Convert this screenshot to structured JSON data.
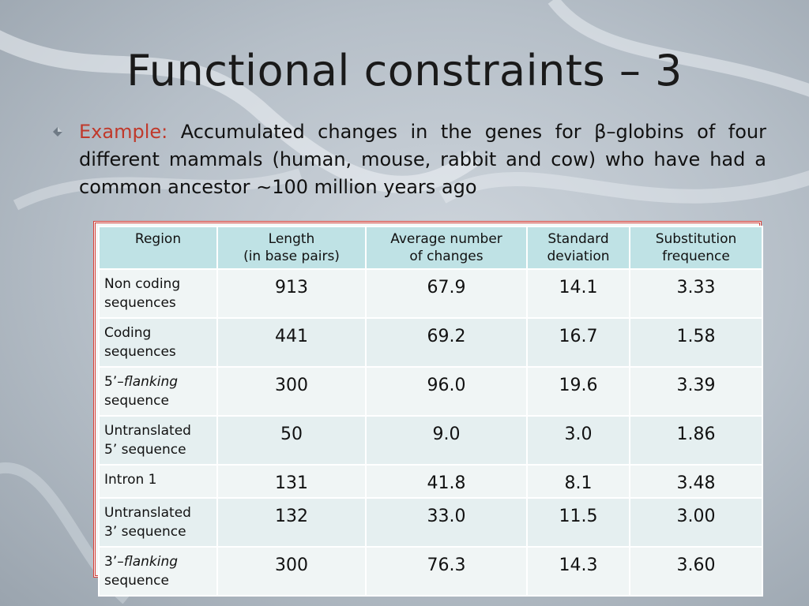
{
  "slide": {
    "title": "Functional constraints – 3",
    "bullet": {
      "lead": "Example:",
      "text": "Accumulated changes in the genes for β–globins of four different mammals (human, mouse, rabbit and cow) who have had a common ancestor ∼100 million years ago"
    }
  },
  "table": {
    "headers": [
      {
        "line1": "Region",
        "line2": ""
      },
      {
        "line1": "Length",
        "line2": "(in base pairs)"
      },
      {
        "line1": "Average number",
        "line2": "of  changes"
      },
      {
        "line1": "Standard",
        "line2": "deviation"
      },
      {
        "line1": "Substitution",
        "line2": "frequence"
      }
    ],
    "rows": [
      {
        "region_prefix": "",
        "region_italic": "",
        "region_line1": "Non coding",
        "region_line2": "sequences",
        "length": "913",
        "avg": "67.9",
        "sd": "14.1",
        "freq": "3.33"
      },
      {
        "region_prefix": "",
        "region_italic": "",
        "region_line1": "Coding",
        "region_line2": "sequences",
        "length": "441",
        "avg": "69.2",
        "sd": "16.7",
        "freq": "1.58"
      },
      {
        "region_prefix": "5’–",
        "region_italic": "flanking",
        "region_line1": "",
        "region_line2": "sequence",
        "length": "300",
        "avg": "96.0",
        "sd": "19.6",
        "freq": "3.39"
      },
      {
        "region_prefix": "",
        "region_italic": "",
        "region_line1": "Untranslated",
        "region_line2": "5’  sequence",
        "length": "50",
        "avg": "9.0",
        "sd": "3.0",
        "freq": "1.86"
      },
      {
        "region_prefix": "",
        "region_italic": "",
        "region_line1": "Intron 1",
        "region_line2": "",
        "length": "131",
        "avg": "41.8",
        "sd": "8.1",
        "freq": "3.48"
      },
      {
        "region_prefix": "",
        "region_italic": "",
        "region_line1": "Untranslated",
        "region_line2": "3’  sequence",
        "length": "132",
        "avg": "33.0",
        "sd": "11.5",
        "freq": "3.00"
      },
      {
        "region_prefix": "3’–",
        "region_italic": "flanking",
        "region_line1": "",
        "region_line2": "sequence",
        "length": "300",
        "avg": "76.3",
        "sd": "14.3",
        "freq": "3.60"
      }
    ]
  },
  "colors": {
    "lead": "#c0392b",
    "header_bg": "#bfe2e5",
    "frame": "#d6403a"
  },
  "icons": {
    "bullet": "diamond-bullet-icon",
    "background": "dna-helix-decoration"
  }
}
